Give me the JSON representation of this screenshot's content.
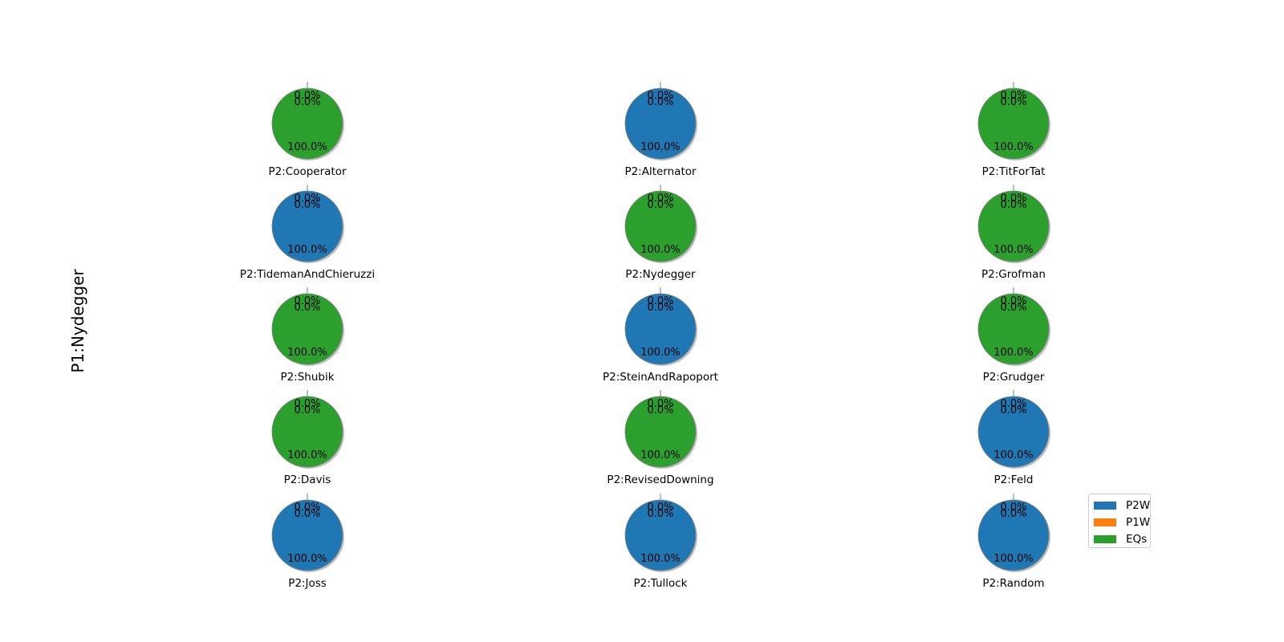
{
  "figure": {
    "ylabel": "P1:Nydegger"
  },
  "legend": {
    "placement": "lower-right",
    "items": [
      {
        "label": "P2W",
        "color": "#1f77b4"
      },
      {
        "label": "P1W",
        "color": "#ff7f0e"
      },
      {
        "label": "EQs",
        "color": "#2ca02c"
      }
    ]
  },
  "chart_data": {
    "type": "pie",
    "slice_labels": [
      "P2W",
      "P1W",
      "EQs"
    ],
    "colors": [
      "#1f77b4",
      "#ff7f0e",
      "#2ca02c"
    ],
    "grid": {
      "rows": 5,
      "cols": 3
    },
    "pies": [
      {
        "title": "P2:Cooperator",
        "values": [
          0.0,
          0.0,
          100.0
        ]
      },
      {
        "title": "P2:Alternator",
        "values": [
          100.0,
          0.0,
          0.0
        ]
      },
      {
        "title": "P2:TitForTat",
        "values": [
          0.0,
          0.0,
          100.0
        ]
      },
      {
        "title": "P2:TidemanAndChieruzzi",
        "values": [
          100.0,
          0.0,
          0.0
        ]
      },
      {
        "title": "P2:Nydegger",
        "values": [
          0.0,
          0.0,
          100.0
        ]
      },
      {
        "title": "P2:Grofman",
        "values": [
          0.0,
          0.0,
          100.0
        ]
      },
      {
        "title": "P2:Shubik",
        "values": [
          0.0,
          0.0,
          100.0
        ]
      },
      {
        "title": "P2:SteinAndRapoport",
        "values": [
          100.0,
          0.0,
          0.0
        ]
      },
      {
        "title": "P2:Grudger",
        "values": [
          0.0,
          0.0,
          100.0
        ]
      },
      {
        "title": "P2:Davis",
        "values": [
          0.0,
          0.0,
          100.0
        ]
      },
      {
        "title": "P2:RevisedDowning",
        "values": [
          0.0,
          0.0,
          100.0
        ]
      },
      {
        "title": "P2:Feld",
        "values": [
          100.0,
          0.0,
          0.0
        ]
      },
      {
        "title": "P2:Joss",
        "values": [
          100.0,
          0.0,
          0.0
        ]
      },
      {
        "title": "P2:Tullock",
        "values": [
          100.0,
          0.0,
          0.0
        ]
      },
      {
        "title": "P2:Random",
        "values": [
          100.0,
          0.0,
          0.0
        ]
      }
    ]
  }
}
